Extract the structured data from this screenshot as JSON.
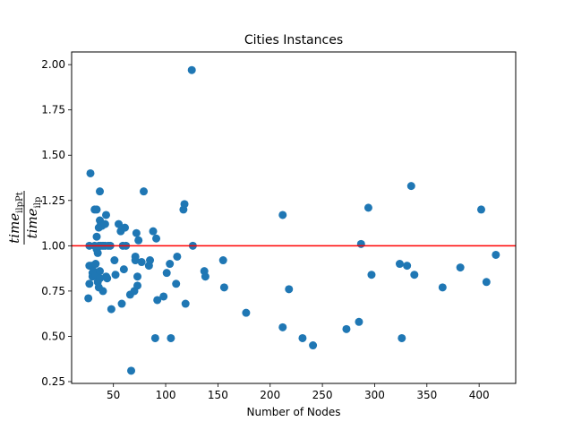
{
  "chart_data": {
    "type": "scatter",
    "title": "Cities Instances",
    "xlabel": "Number of Nodes",
    "ylabel": {
      "numerator": "time",
      "numerator_sub": "ilpPt",
      "denominator": "time",
      "denominator_sub": "ilp"
    },
    "xlim": [
      10,
      435
    ],
    "ylim": [
      0.24,
      2.07
    ],
    "xticks": [
      50,
      100,
      150,
      200,
      250,
      300,
      350,
      400
    ],
    "yticks": [
      0.25,
      0.5,
      0.75,
      1.0,
      1.25,
      1.5,
      1.75,
      2.0
    ],
    "ytick_labels": [
      "0.25",
      "0.50",
      "0.75",
      "1.00",
      "1.25",
      "1.50",
      "1.75",
      "2.00"
    ],
    "point_color": "#1f77b4",
    "reference_line": {
      "y": 1.0,
      "color": "#ff0000"
    },
    "grid": false,
    "points": [
      [
        26,
        0.71
      ],
      [
        27,
        1.0
      ],
      [
        27,
        0.89
      ],
      [
        27,
        0.79
      ],
      [
        28,
        1.4
      ],
      [
        29,
        0.89
      ],
      [
        30,
        0.85
      ],
      [
        30,
        0.83
      ],
      [
        31,
        0.86
      ],
      [
        32,
        1.2
      ],
      [
        32,
        1.0
      ],
      [
        33,
        0.9
      ],
      [
        33,
        0.84
      ],
      [
        34,
        1.2
      ],
      [
        34,
        1.05
      ],
      [
        34,
        0.98
      ],
      [
        35,
        0.8
      ],
      [
        35,
        0.96
      ],
      [
        36,
        1.1
      ],
      [
        36,
        1.0
      ],
      [
        36,
        0.77
      ],
      [
        37,
        1.3
      ],
      [
        37,
        1.14
      ],
      [
        37,
        0.86
      ],
      [
        37,
        0.82
      ],
      [
        38,
        1.12
      ],
      [
        38,
        1.0
      ],
      [
        39,
        1.11
      ],
      [
        40,
        1.0
      ],
      [
        40,
        0.75
      ],
      [
        42,
        1.12
      ],
      [
        42,
        1.0
      ],
      [
        43,
        0.83
      ],
      [
        43,
        1.17
      ],
      [
        44,
        0.82
      ],
      [
        45,
        1.0
      ],
      [
        47,
        1.0
      ],
      [
        48,
        0.65
      ],
      [
        51,
        0.92
      ],
      [
        52,
        0.84
      ],
      [
        55,
        1.12
      ],
      [
        57,
        1.08
      ],
      [
        58,
        0.68
      ],
      [
        59,
        1.0
      ],
      [
        60,
        0.87
      ],
      [
        61,
        1.1
      ],
      [
        62,
        1.0
      ],
      [
        66,
        0.73
      ],
      [
        67,
        0.31
      ],
      [
        70,
        0.75
      ],
      [
        71,
        0.94
      ],
      [
        71,
        0.92
      ],
      [
        72,
        1.07
      ],
      [
        73,
        0.78
      ],
      [
        73,
        0.83
      ],
      [
        74,
        1.03
      ],
      [
        77,
        0.91
      ],
      [
        79,
        1.3
      ],
      [
        84,
        0.89
      ],
      [
        85,
        0.92
      ],
      [
        88,
        1.08
      ],
      [
        90,
        0.49
      ],
      [
        91,
        1.04
      ],
      [
        92,
        0.7
      ],
      [
        98,
        0.72
      ],
      [
        101,
        0.85
      ],
      [
        104,
        0.9
      ],
      [
        105,
        0.49
      ],
      [
        110,
        0.79
      ],
      [
        111,
        0.94
      ],
      [
        117,
        1.2
      ],
      [
        118,
        1.23
      ],
      [
        119,
        0.68
      ],
      [
        125,
        1.97
      ],
      [
        126,
        1.0
      ],
      [
        137,
        0.86
      ],
      [
        138,
        0.83
      ],
      [
        155,
        0.92
      ],
      [
        156,
        0.77
      ],
      [
        177,
        0.63
      ],
      [
        212,
        1.17
      ],
      [
        212,
        0.55
      ],
      [
        218,
        0.76
      ],
      [
        231,
        0.49
      ],
      [
        241,
        0.45
      ],
      [
        273,
        0.54
      ],
      [
        285,
        0.58
      ],
      [
        287,
        1.01
      ],
      [
        294,
        1.21
      ],
      [
        297,
        0.84
      ],
      [
        324,
        0.9
      ],
      [
        326,
        0.49
      ],
      [
        331,
        0.89
      ],
      [
        335,
        1.33
      ],
      [
        338,
        0.84
      ],
      [
        365,
        0.77
      ],
      [
        382,
        0.88
      ],
      [
        402,
        1.2
      ],
      [
        407,
        0.8
      ],
      [
        416,
        0.95
      ]
    ]
  }
}
